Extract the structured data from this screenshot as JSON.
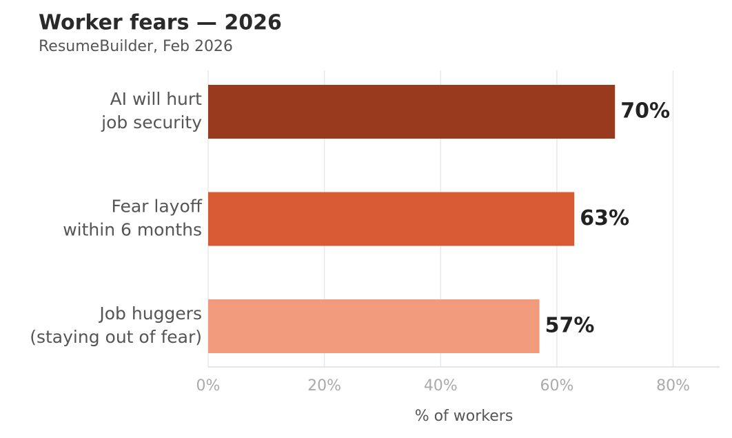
{
  "chart_data": {
    "type": "bar",
    "orientation": "horizontal",
    "title": "Worker fears — 2026",
    "subtitle": "ResumeBuilder, Feb 2026",
    "xlabel": "% of workers",
    "categories": [
      "AI will hurt\njob security",
      "Fear layoff\nwithin 6 months",
      "Job huggers\n(staying out of fear)"
    ],
    "values": [
      70,
      63,
      57
    ],
    "value_labels": [
      "70%",
      "63%",
      "57%"
    ],
    "colors": [
      "#983a1e",
      "#d85a32",
      "#f29b7c"
    ],
    "xlim": [
      0,
      88
    ],
    "xticks": [
      {
        "value": 0,
        "label": "0%"
      },
      {
        "value": 20,
        "label": "20%"
      },
      {
        "value": 40,
        "label": "40%"
      },
      {
        "value": 60,
        "label": "60%"
      },
      {
        "value": 80,
        "label": "80%"
      }
    ],
    "grid": true
  }
}
